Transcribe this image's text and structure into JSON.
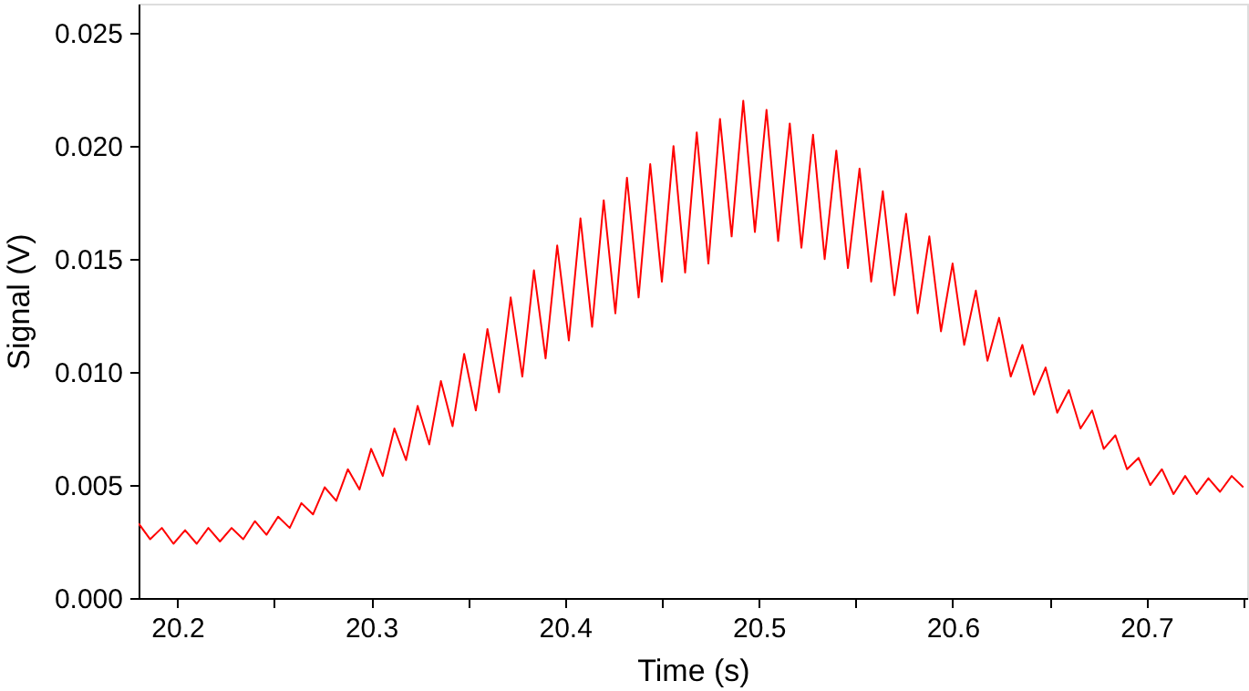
{
  "chart_data": {
    "type": "line",
    "xlabel": "Time (s)",
    "ylabel": "Signal (V)",
    "xlim": [
      20.18,
      20.752
    ],
    "ylim": [
      0,
      0.0263
    ],
    "xticks": [
      20.2,
      {
        "value": 20.25,
        "label": null
      },
      20.3,
      {
        "value": 20.35,
        "label": null
      },
      20.4,
      {
        "value": 20.45,
        "label": null
      },
      20.5,
      {
        "value": 20.55,
        "label": null
      },
      20.6,
      {
        "value": 20.65,
        "label": null
      },
      20.7,
      {
        "value": 20.75,
        "label": null
      }
    ],
    "yticks": [
      {
        "value": 0,
        "label": "0.000"
      },
      {
        "value": 0.005,
        "label": "0.005"
      },
      {
        "value": 0.01,
        "label": "0.010"
      },
      {
        "value": 0.015,
        "label": "0.015"
      },
      {
        "value": 0.02,
        "label": "0.020"
      },
      {
        "value": 0.025,
        "label": "0.025"
      }
    ],
    "grid": false,
    "marker": "none",
    "line_style": "solid",
    "x": [
      20.18,
      20.186,
      20.192,
      20.198,
      20.204,
      20.21,
      20.216,
      20.222,
      20.228,
      20.234,
      20.24,
      20.246,
      20.252,
      20.258,
      20.264,
      20.27,
      20.276,
      20.282,
      20.288,
      20.294,
      20.3,
      20.306,
      20.312,
      20.318,
      20.324,
      20.33,
      20.336,
      20.342,
      20.348,
      20.354,
      20.36,
      20.366,
      20.372,
      20.378,
      20.384,
      20.39,
      20.396,
      20.402,
      20.408,
      20.414,
      20.42,
      20.426,
      20.432,
      20.438,
      20.444,
      20.45,
      20.456,
      20.462,
      20.468,
      20.474,
      20.48,
      20.486,
      20.492,
      20.498,
      20.504,
      20.51,
      20.516,
      20.522,
      20.528,
      20.534,
      20.54,
      20.546,
      20.552,
      20.558,
      20.564,
      20.57,
      20.576,
      20.582,
      20.588,
      20.594,
      20.6,
      20.606,
      20.612,
      20.618,
      20.624,
      20.63,
      20.636,
      20.642,
      20.648,
      20.654,
      20.66,
      20.666,
      20.672,
      20.678,
      20.684,
      20.69,
      20.696,
      20.702,
      20.708,
      20.714,
      20.72,
      20.726,
      20.732,
      20.738,
      20.744,
      20.75
    ],
    "series": [
      {
        "color": "#ff0000",
        "values": [
          0.0033,
          0.0026,
          0.0031,
          0.0024,
          0.003,
          0.0024,
          0.0031,
          0.0025,
          0.0031,
          0.0026,
          0.0034,
          0.0028,
          0.0036,
          0.0031,
          0.0042,
          0.0037,
          0.0049,
          0.0043,
          0.0057,
          0.0048,
          0.0066,
          0.0054,
          0.0075,
          0.0061,
          0.0085,
          0.0068,
          0.0096,
          0.0076,
          0.0108,
          0.0083,
          0.0119,
          0.0091,
          0.0133,
          0.0098,
          0.0145,
          0.0106,
          0.0156,
          0.0114,
          0.0168,
          0.012,
          0.0176,
          0.0126,
          0.0186,
          0.0133,
          0.0192,
          0.014,
          0.02,
          0.0144,
          0.0206,
          0.0148,
          0.0212,
          0.016,
          0.022,
          0.0162,
          0.0216,
          0.0158,
          0.021,
          0.0155,
          0.0205,
          0.015,
          0.0198,
          0.0146,
          0.019,
          0.014,
          0.018,
          0.0134,
          0.017,
          0.0126,
          0.016,
          0.0118,
          0.0148,
          0.0112,
          0.0136,
          0.0105,
          0.0124,
          0.0098,
          0.0112,
          0.009,
          0.0102,
          0.0082,
          0.0092,
          0.0075,
          0.0083,
          0.0066,
          0.0072,
          0.0057,
          0.0062,
          0.005,
          0.0057,
          0.0046,
          0.0054,
          0.0046,
          0.0053,
          0.0047,
          0.0054,
          0.0049
        ]
      }
    ]
  }
}
